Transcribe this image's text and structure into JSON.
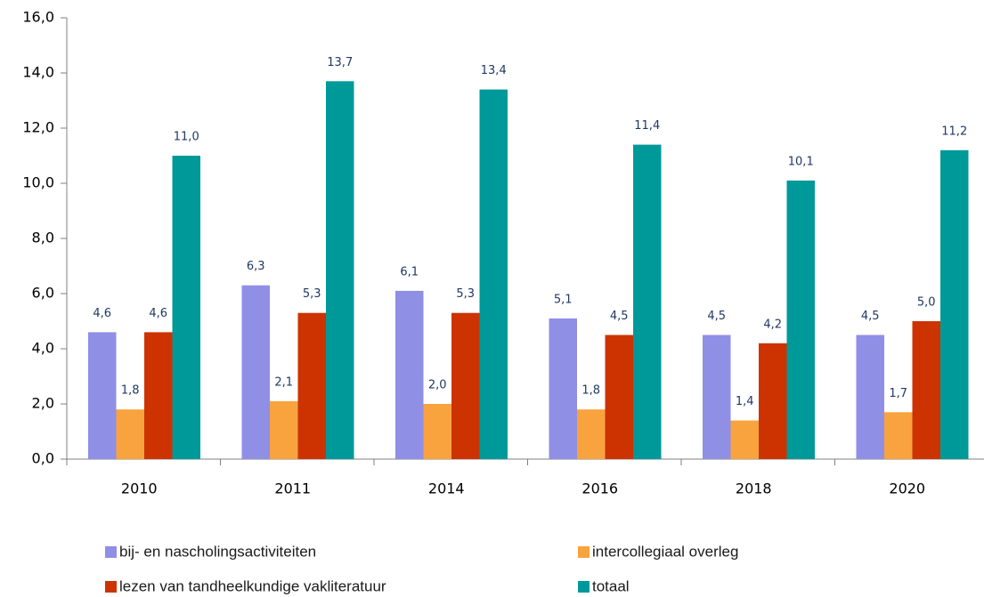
{
  "chart_data": {
    "type": "bar",
    "categories": [
      "2010",
      "2011",
      "2014",
      "2016",
      "2018",
      "2020"
    ],
    "series": [
      {
        "name": "bij- en nascholingsactiviteiten",
        "color": "#8f8fe6",
        "values": [
          4.6,
          6.3,
          6.1,
          5.1,
          4.5,
          4.5
        ],
        "value_labels": [
          "4,6",
          "6,3",
          "6,1",
          "5,1",
          "4,5",
          "4,5"
        ]
      },
      {
        "name": "intercollegiaal overleg",
        "color": "#f9a33f",
        "values": [
          1.8,
          2.1,
          2.0,
          1.8,
          1.4,
          1.7
        ],
        "value_labels": [
          "1,8",
          "2,1",
          "2,0",
          "1,8",
          "1,4",
          "1,7"
        ]
      },
      {
        "name": "lezen van tandheelkundige vakliteratuur",
        "color": "#cc3300",
        "values": [
          4.6,
          5.3,
          5.3,
          4.5,
          4.2,
          5.0
        ],
        "value_labels": [
          "4,6",
          "5,3",
          "5,3",
          "4,5",
          "4,2",
          "5,0"
        ]
      },
      {
        "name": "totaal",
        "color": "#009999",
        "values": [
          11.0,
          13.7,
          13.4,
          11.4,
          10.1,
          11.2
        ],
        "value_labels": [
          "11,0",
          "13,7",
          "13,4",
          "11,4",
          "10,1",
          "11,2"
        ]
      }
    ],
    "ylim": [
      0,
      16
    ],
    "yticks": [
      {
        "value": 0,
        "label": "0,0"
      },
      {
        "value": 2,
        "label": "2,0"
      },
      {
        "value": 4,
        "label": "4,0"
      },
      {
        "value": 6,
        "label": "6,0"
      },
      {
        "value": 8,
        "label": "8,0"
      },
      {
        "value": 10,
        "label": "10,0"
      },
      {
        "value": 12,
        "label": "12,0"
      },
      {
        "value": 14,
        "label": "14,0"
      },
      {
        "value": 16,
        "label": "16,0"
      }
    ],
    "grid": false,
    "legend": "bottom"
  }
}
